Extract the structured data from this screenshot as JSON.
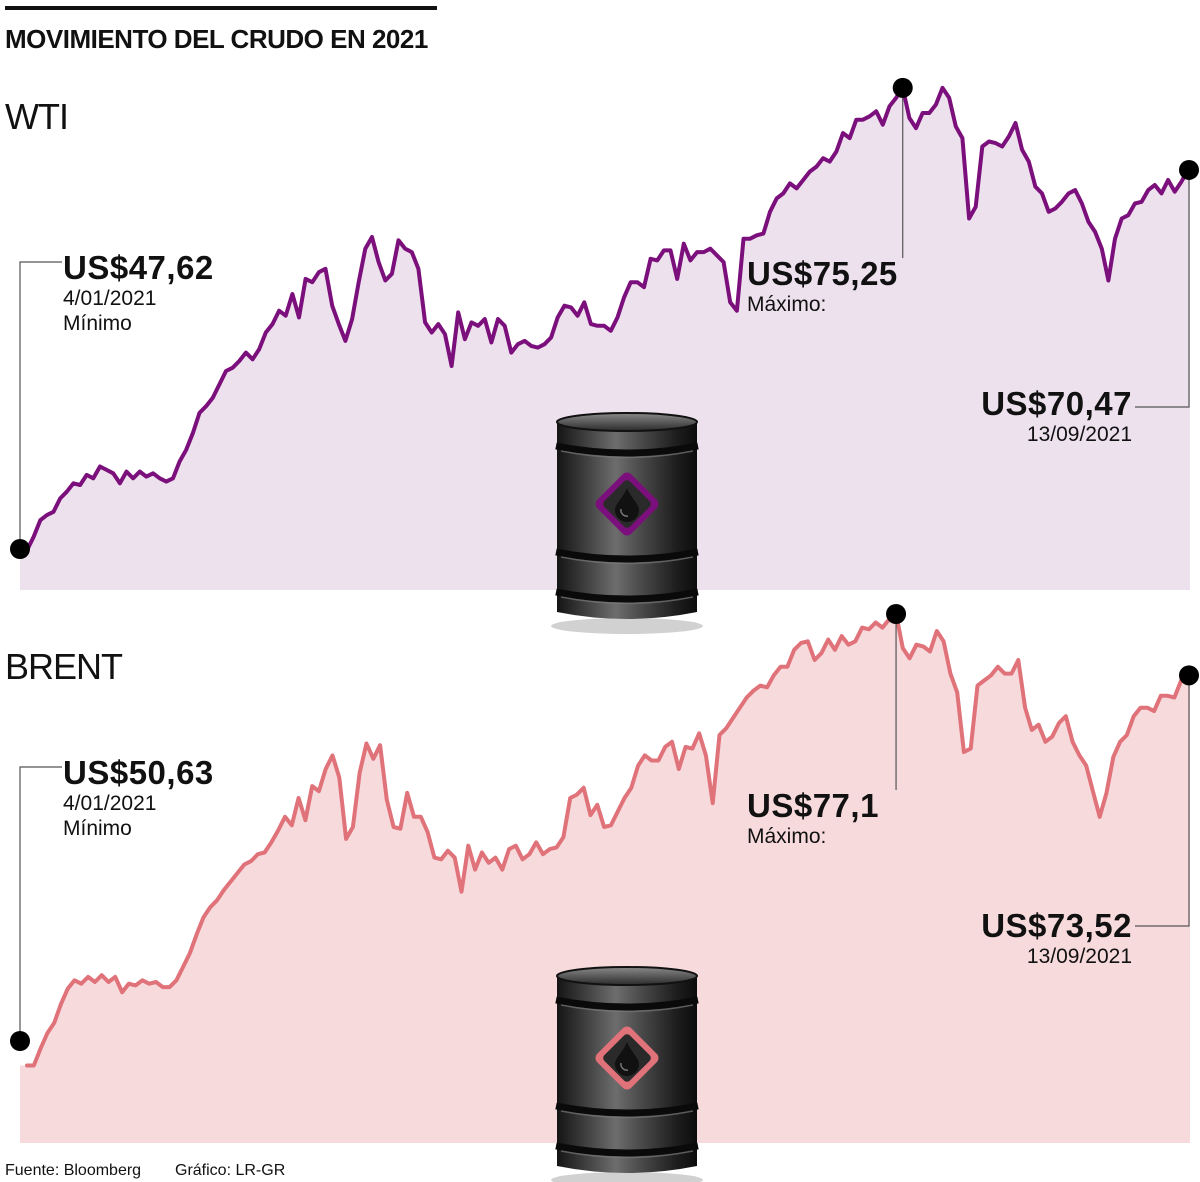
{
  "title": "MOVIMIENTO DEL CRUDO EN 2021",
  "footer": {
    "source": "Fuente: Bloomberg",
    "credit": "Gráfico: LR-GR"
  },
  "colors": {
    "wti_line": "#7b0f7b",
    "wti_fill": "#ede1ee",
    "brent_line": "#e0727a",
    "brent_fill": "#f7dadc",
    "dot": "#000000",
    "leader": "#555555"
  },
  "charts": {
    "wti": {
      "name": "WTI",
      "min": {
        "value": "US$47,62",
        "date": "4/01/2021",
        "label": "Mínimo"
      },
      "max": {
        "value": "US$75,25",
        "label": "Máximo:"
      },
      "last": {
        "value": "US$70,47",
        "date": "13/09/2021"
      }
    },
    "brent": {
      "name": "BRENT",
      "min": {
        "value": "US$50,63",
        "date": "4/01/2021",
        "label": "Mínimo"
      },
      "max": {
        "value": "US$77,1",
        "label": "Máximo:"
      },
      "last": {
        "value": "US$73,52",
        "date": "13/09/2021"
      }
    }
  },
  "chart_data": [
    {
      "type": "area",
      "series": [
        {
          "name": "WTI",
          "unit": "US$",
          "values": [
            47.6,
            48.4,
            49.4,
            49.7,
            49.9,
            50.7,
            51.1,
            51.6,
            51.5,
            52.1,
            51.9,
            52.6,
            52.4,
            52.2,
            51.6,
            52.3,
            51.9,
            52.3,
            52.0,
            52.2,
            51.9,
            51.7,
            51.9,
            52.9,
            53.6,
            54.6,
            55.8,
            56.2,
            56.7,
            57.5,
            58.3,
            58.5,
            58.9,
            59.4,
            59.0,
            59.6,
            60.6,
            61.1,
            61.9,
            61.6,
            62.9,
            61.5,
            63.8,
            63.6,
            64.2,
            64.4,
            62.2,
            61.1,
            60.1,
            61.4,
            63.6,
            65.6,
            66.3,
            64.8,
            63.7,
            64.1,
            66.1,
            65.6,
            65.4,
            64.4,
            61.2,
            60.6,
            61.1,
            60.5,
            58.6,
            61.8,
            60.2,
            61.2,
            61.0,
            61.4,
            60.0,
            61.4,
            61.0,
            59.4,
            59.9,
            60.1,
            59.8,
            59.7,
            59.9,
            60.3,
            61.5,
            62.2,
            62.1,
            61.6,
            62.4,
            61.1,
            61.0,
            61.0,
            60.7,
            61.5,
            62.7,
            63.6,
            63.6,
            63.3,
            65.0,
            64.9,
            65.5,
            65.5,
            63.8,
            65.9,
            64.9,
            65.4,
            65.4,
            65.6,
            65.2,
            64.8,
            62.4,
            61.9,
            66.2,
            66.2,
            66.4,
            66.5,
            67.8,
            68.6,
            68.9,
            69.5,
            69.2,
            69.7,
            70.2,
            70.5,
            71.0,
            70.8,
            71.4,
            72.5,
            72.2,
            73.3,
            73.3,
            73.5,
            73.8,
            73.0,
            74.1,
            74.6,
            75.2,
            73.4,
            72.8,
            73.7,
            73.7,
            74.2,
            75.2,
            74.6,
            72.9,
            72.2,
            67.4,
            68.1,
            71.7,
            72.0,
            71.9,
            71.7,
            72.3,
            73.1,
            71.5,
            70.8,
            69.3,
            68.9,
            67.8,
            68.0,
            68.4,
            68.9,
            69.1,
            68.3,
            67.2,
            66.6,
            65.6,
            63.7,
            66.2,
            67.4,
            67.6,
            68.3,
            68.4,
            69.1,
            69.4,
            68.9,
            69.7,
            69.0,
            69.6,
            70.3
          ]
        }
      ],
      "highlights": {
        "min": 47.62,
        "max": 75.25,
        "last": 70.47
      }
    },
    {
      "type": "area",
      "series": [
        {
          "name": "BRENT",
          "unit": "US$",
          "values": [
            50.6,
            50.6,
            51.6,
            52.5,
            53.1,
            54.2,
            55.1,
            55.6,
            55.4,
            55.8,
            55.5,
            55.9,
            55.5,
            55.8,
            54.9,
            55.4,
            55.3,
            55.6,
            55.4,
            55.5,
            55.2,
            55.2,
            55.6,
            56.4,
            57.2,
            58.3,
            59.3,
            59.9,
            60.3,
            60.9,
            61.4,
            61.9,
            62.4,
            62.6,
            63.0,
            63.1,
            63.7,
            64.4,
            65.2,
            64.7,
            66.3,
            65.0,
            67.0,
            66.7,
            68.0,
            68.8,
            67.5,
            63.9,
            64.6,
            67.8,
            69.5,
            68.6,
            69.4,
            66.2,
            64.6,
            64.5,
            66.6,
            65.2,
            65.2,
            64.3,
            62.8,
            62.7,
            63.2,
            62.8,
            60.8,
            63.5,
            62.1,
            63.1,
            62.5,
            62.8,
            62.1,
            63.3,
            63.5,
            62.7,
            63.0,
            63.7,
            63.0,
            63.3,
            63.4,
            64.0,
            66.3,
            66.5,
            66.9,
            65.3,
            65.9,
            64.6,
            64.7,
            65.5,
            66.3,
            66.9,
            68.2,
            68.8,
            68.5,
            68.5,
            69.3,
            69.6,
            68.0,
            69.3,
            69.2,
            70.1,
            68.8,
            66.0,
            70.0,
            70.4,
            71.0,
            71.6,
            72.2,
            72.6,
            72.9,
            72.8,
            73.5,
            74.0,
            74.0,
            75.0,
            75.4,
            75.5,
            74.4,
            74.8,
            75.6,
            75.0,
            75.8,
            75.3,
            75.5,
            76.3,
            76.2,
            76.6,
            76.3,
            76.8,
            77.1,
            75.1,
            74.5,
            75.3,
            75.2,
            74.9,
            76.1,
            75.5,
            73.6,
            72.5,
            69.0,
            69.2,
            72.9,
            73.2,
            73.5,
            74.0,
            73.6,
            73.6,
            74.4,
            71.6,
            70.3,
            70.6,
            69.6,
            69.9,
            70.7,
            71.1,
            69.6,
            68.8,
            68.2,
            66.7,
            65.2,
            66.6,
            68.7,
            69.6,
            70.0,
            71.1,
            71.6,
            71.6,
            71.4,
            72.3,
            72.3,
            72.2,
            73.2,
            73.5
          ]
        }
      ],
      "highlights": {
        "min": 50.63,
        "max": 77.1,
        "last": 73.52
      }
    }
  ]
}
